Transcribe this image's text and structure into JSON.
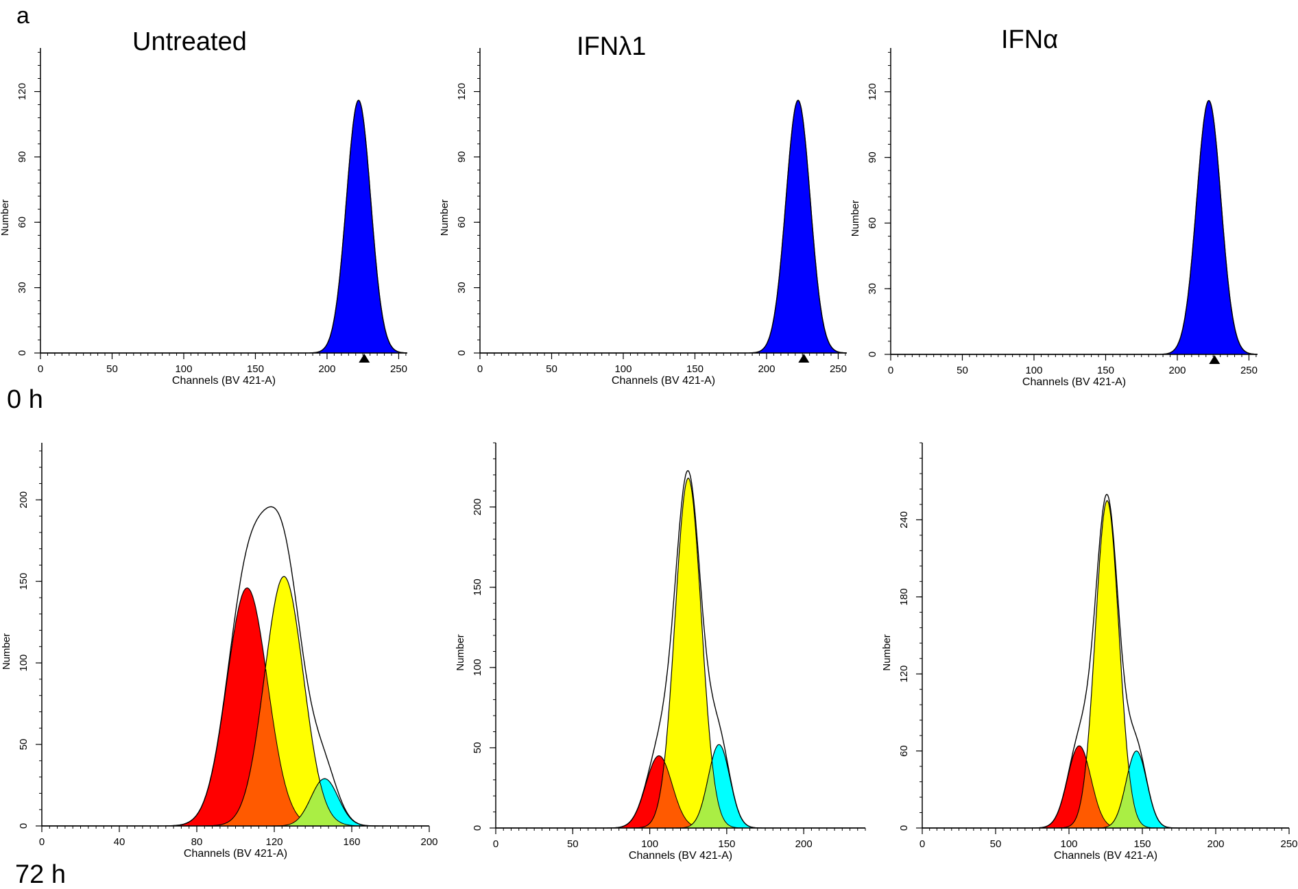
{
  "figure": {
    "panel_letter": "a",
    "row_labels": [
      "0 h",
      "72 h"
    ],
    "column_titles": [
      "Untreated",
      "IFNλ1",
      "IFNα"
    ]
  },
  "colors": {
    "parent_peak": "#0000ff",
    "gen_red": "#ff0000",
    "gen_orange": "#ff5a00",
    "gen_yellow": "#ffff00",
    "gen_green": "#aaee44",
    "gen_cyan": "#00ffff",
    "gen_blue": "#5577ff",
    "line": "#000000"
  },
  "chart_data": [
    {
      "type": "area",
      "row": "0 h",
      "column": "Untreated",
      "title": "Untreated",
      "xlabel": "Channels (BV 421-A)",
      "ylabel": "Number",
      "xlim": [
        0,
        256
      ],
      "ylim": [
        0,
        140
      ],
      "xticks": [
        0,
        50,
        100,
        150,
        200,
        250
      ],
      "yticks": [
        0,
        30,
        60,
        90,
        120
      ],
      "marker_x": 226,
      "series": [
        {
          "color": "parent_peak",
          "mu": 222,
          "sigma": 8.5,
          "amp": 116
        }
      ]
    },
    {
      "type": "area",
      "row": "0 h",
      "column": "IFNλ1",
      "title": "IFNλ1",
      "xlabel": "Channels (BV 421-A)",
      "ylabel": "Number",
      "xlim": [
        0,
        256
      ],
      "ylim": [
        0,
        140
      ],
      "xticks": [
        0,
        50,
        100,
        150,
        200,
        250
      ],
      "yticks": [
        0,
        30,
        60,
        90,
        120
      ],
      "marker_x": 226,
      "series": [
        {
          "color": "parent_peak",
          "mu": 222,
          "sigma": 8.5,
          "amp": 116
        }
      ]
    },
    {
      "type": "area",
      "row": "0 h",
      "column": "IFNα",
      "title": "IFNα",
      "xlabel": "Channels (BV 421-A)",
      "ylabel": "Number",
      "xlim": [
        0,
        256
      ],
      "ylim": [
        0,
        140
      ],
      "xticks": [
        0,
        50,
        100,
        150,
        200,
        250
      ],
      "yticks": [
        0,
        30,
        60,
        90,
        120
      ],
      "marker_x": 226,
      "series": [
        {
          "color": "parent_peak",
          "mu": 222,
          "sigma": 8.5,
          "amp": 116
        }
      ]
    },
    {
      "type": "area",
      "row": "72 h",
      "column": "Untreated",
      "xlabel": "Channels (BV 421-A)",
      "ylabel": "Number",
      "xlim": [
        0,
        200
      ],
      "ylim": [
        0,
        235
      ],
      "xticks": [
        0,
        40,
        80,
        120,
        160,
        200
      ],
      "yticks": [
        0,
        50,
        100,
        150,
        200
      ],
      "xtick_labels": [
        "0",
        "40",
        "80",
        "120",
        "160",
        "200"
      ],
      "series": [
        {
          "color": "gen_red",
          "mu": 106,
          "sigma": 10.5,
          "amp": 146
        },
        {
          "color": "gen_yellow",
          "mu": 125,
          "sigma": 10,
          "amp": 153
        },
        {
          "color": "gen_cyan",
          "mu": 146,
          "sigma": 7,
          "amp": 29
        }
      ]
    },
    {
      "type": "area",
      "row": "72 h",
      "column": "IFNλ1",
      "xlabel": "Channels (BV 421-A)",
      "ylabel": "Number",
      "xlim": [
        0,
        240
      ],
      "ylim": [
        0,
        240
      ],
      "xticks": [
        0,
        50,
        100,
        150,
        200
      ],
      "yticks": [
        0,
        50,
        100,
        150,
        200
      ],
      "series": [
        {
          "color": "gen_red",
          "mu": 106,
          "sigma": 8.5,
          "amp": 45
        },
        {
          "color": "gen_yellow",
          "mu": 125,
          "sigma": 8.5,
          "amp": 218
        },
        {
          "color": "gen_cyan",
          "mu": 145,
          "sigma": 7,
          "amp": 52
        }
      ]
    },
    {
      "type": "area",
      "row": "72 h",
      "column": "IFNα",
      "xlabel": "Channels (BV 421-A)",
      "ylabel": "Number",
      "xlim": [
        0,
        250
      ],
      "ylim": [
        0,
        300
      ],
      "xticks": [
        0,
        50,
        100,
        150,
        200,
        250
      ],
      "yticks": [
        0,
        60,
        120,
        180,
        240
      ],
      "series": [
        {
          "color": "gen_red",
          "mu": 107,
          "sigma": 8,
          "amp": 64
        },
        {
          "color": "gen_yellow",
          "mu": 126,
          "sigma": 8,
          "amp": 255
        },
        {
          "color": "gen_cyan",
          "mu": 146,
          "sigma": 7,
          "amp": 60
        }
      ]
    }
  ]
}
